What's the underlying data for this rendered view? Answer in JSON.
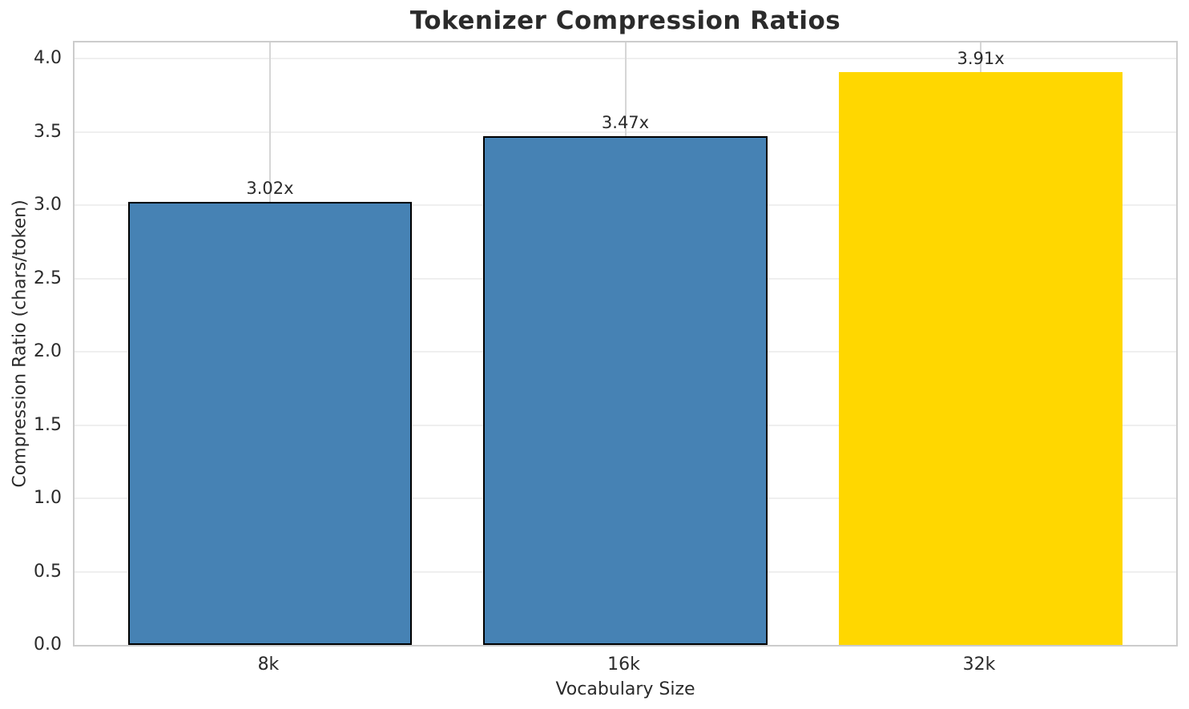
{
  "chart_data": {
    "type": "bar",
    "title": "Tokenizer Compression Ratios",
    "xlabel": "Vocabulary Size",
    "ylabel": "Compression Ratio (chars/token)",
    "categories": [
      "8k",
      "16k",
      "32k"
    ],
    "values": [
      3.02,
      3.47,
      3.91
    ],
    "bar_labels": [
      "3.02x",
      "3.47x",
      "3.91x"
    ],
    "bar_colors": [
      "#4682b4",
      "#4682b4",
      "#ffd700"
    ],
    "bar_edge_colors": [
      "#000000",
      "#000000",
      "#ffd700"
    ],
    "ylim": [
      0,
      4.11
    ],
    "yticks": [
      "0.0",
      "0.5",
      "1.0",
      "1.5",
      "2.0",
      "2.5",
      "3.0",
      "3.5",
      "4.0"
    ],
    "grid": true,
    "grid_axis": "both",
    "legend": "none",
    "colors": {
      "bar_default": "#4682b4",
      "bar_highlight": "#ffd700",
      "bar_edge": "#000000",
      "grid_h": "#efefef",
      "grid_v": "#d6d6d6",
      "spine": "#cccccc",
      "text": "#2b2b2b",
      "background": "#ffffff"
    }
  }
}
